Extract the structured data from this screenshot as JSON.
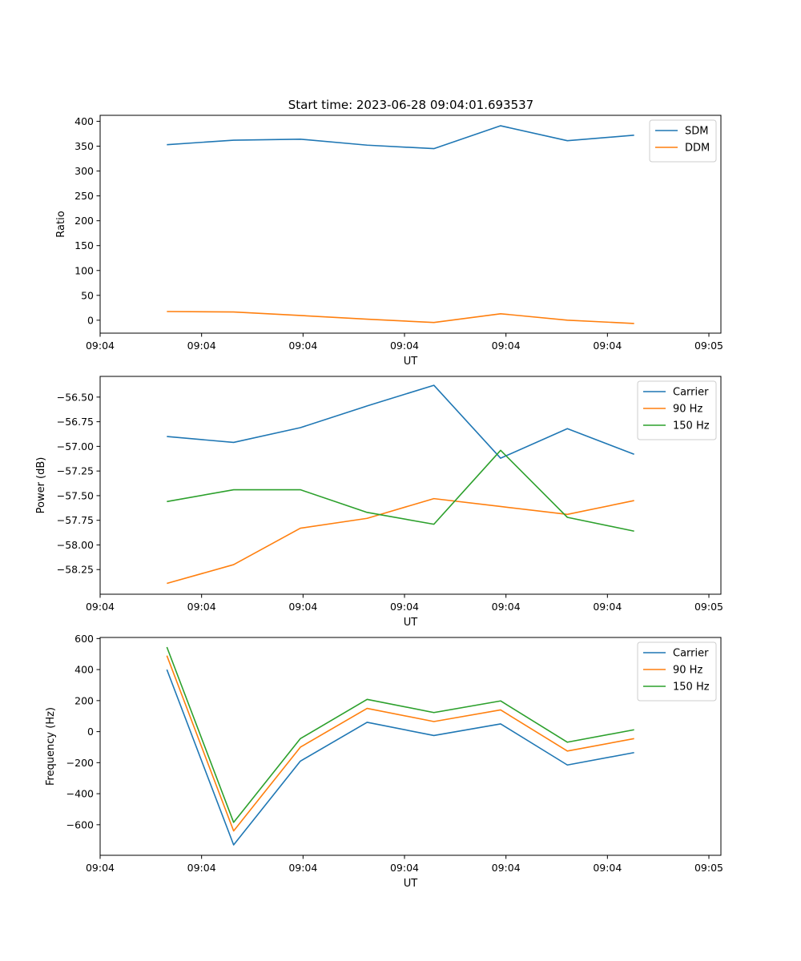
{
  "title": "Start time: 2023-06-28 09:04:01.693537",
  "colors": {
    "blue": "#1f77b4",
    "orange": "#ff7f0e",
    "green": "#2ca02c"
  },
  "chart_data": [
    {
      "type": "line",
      "x": [
        1,
        2,
        3,
        4,
        5,
        6,
        7,
        8
      ],
      "x_tick_labels": [
        "09:04",
        "09:04",
        "09:04",
        "09:04",
        "09:04",
        "09:04",
        "09:05"
      ],
      "xlabel": "UT",
      "ylabel": "Ratio",
      "ylim": [
        -26,
        412
      ],
      "yticks": [
        0,
        50,
        100,
        150,
        200,
        250,
        300,
        350,
        400
      ],
      "ytick_labels": [
        "0",
        "50",
        "100",
        "150",
        "200",
        "250",
        "300",
        "350",
        "400"
      ],
      "legend_position": "top-right",
      "series": [
        {
          "name": "SDM",
          "color": "#1f77b4",
          "values": [
            353,
            362,
            364,
            352,
            345,
            391,
            361,
            372
          ]
        },
        {
          "name": "DDM",
          "color": "#ff7f0e",
          "values": [
            17.5,
            16.5,
            9.5,
            2,
            -4.5,
            13,
            0,
            -6.5
          ]
        }
      ]
    },
    {
      "type": "line",
      "x": [
        1,
        2,
        3,
        4,
        5,
        6,
        7,
        8
      ],
      "x_tick_labels": [
        "09:04",
        "09:04",
        "09:04",
        "09:04",
        "09:04",
        "09:04",
        "09:05"
      ],
      "xlabel": "UT",
      "ylabel": "Power (dB)",
      "ylim": [
        -58.5,
        -56.29
      ],
      "yticks": [
        -58.25,
        -58.0,
        -57.75,
        -57.5,
        -57.25,
        -57.0,
        -56.75,
        -56.5
      ],
      "ytick_labels": [
        "−58.25",
        "−58.00",
        "−57.75",
        "−57.50",
        "−57.25",
        "−57.00",
        "−56.75",
        "−56.50"
      ],
      "legend_position": "top-right",
      "series": [
        {
          "name": "Carrier",
          "color": "#1f77b4",
          "values": [
            -56.9,
            -56.96,
            -56.81,
            -56.59,
            -56.38,
            -57.12,
            -56.82,
            -57.08
          ]
        },
        {
          "name": "90 Hz",
          "color": "#ff7f0e",
          "values": [
            -58.39,
            -58.2,
            -57.83,
            -57.73,
            -57.53,
            -57.61,
            -57.69,
            -57.55
          ]
        },
        {
          "name": "150 Hz",
          "color": "#2ca02c",
          "values": [
            -57.56,
            -57.44,
            -57.44,
            -57.67,
            -57.79,
            -57.04,
            -57.72,
            -57.86
          ]
        }
      ]
    },
    {
      "type": "line",
      "x": [
        1,
        2,
        3,
        4,
        5,
        6,
        7,
        8
      ],
      "x_tick_labels": [
        "09:04",
        "09:04",
        "09:04",
        "09:04",
        "09:04",
        "09:04",
        "09:05"
      ],
      "xlabel": "UT",
      "ylabel": "Frequency (Hz)",
      "ylim": [
        -797,
        607
      ],
      "yticks": [
        -600,
        -400,
        -200,
        0,
        200,
        400,
        600
      ],
      "ytick_labels": [
        "−600",
        "−400",
        "−200",
        "0",
        "200",
        "400",
        "600"
      ],
      "legend_position": "top-right",
      "series": [
        {
          "name": "Carrier",
          "color": "#1f77b4",
          "values": [
            400,
            -730,
            -190,
            60,
            -25,
            50,
            -215,
            -135
          ]
        },
        {
          "name": "90 Hz",
          "color": "#ff7f0e",
          "values": [
            490,
            -640,
            -100,
            150,
            65,
            140,
            -125,
            -45
          ]
        },
        {
          "name": "150 Hz",
          "color": "#2ca02c",
          "values": [
            545,
            -585,
            -45,
            208,
            123,
            198,
            -68,
            12
          ]
        }
      ]
    }
  ]
}
